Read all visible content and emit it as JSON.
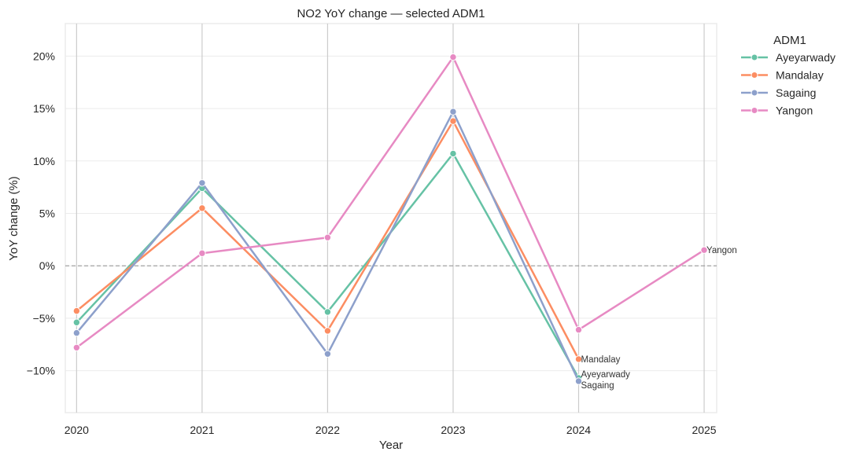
{
  "chart_data": {
    "type": "line",
    "title": "NO2 YoY change — selected ADM1",
    "xlabel": "Year",
    "ylabel": "YoY change (%)",
    "x": [
      2020,
      2021,
      2022,
      2023,
      2024,
      2025
    ],
    "xlim": [
      2019.91,
      2025.1
    ],
    "ylim": [
      -14.0,
      23.1
    ],
    "yticks": [
      -10,
      -5,
      0,
      5,
      10,
      15,
      20
    ],
    "ytick_labels": [
      "−10%",
      "−5%",
      "0%",
      "5%",
      "10%",
      "15%",
      "20%"
    ],
    "xtick_labels": [
      "2020",
      "2021",
      "2022",
      "2023",
      "2024",
      "2025"
    ],
    "grid": true,
    "reference_line": {
      "y": 0,
      "style": "dashed"
    },
    "legend": {
      "title": "ADM1",
      "placement": "outside-top-right"
    },
    "series": [
      {
        "name": "Ayeyarwady",
        "color": "#66c2a5",
        "points": [
          {
            "x": 2020,
            "y": -5.4
          },
          {
            "x": 2021,
            "y": 7.4
          },
          {
            "x": 2022,
            "y": -4.4
          },
          {
            "x": 2023,
            "y": 10.7
          },
          {
            "x": 2024,
            "y": -10.7
          }
        ],
        "end_label": "Ayeyarwady"
      },
      {
        "name": "Mandalay",
        "color": "#fc8d62",
        "points": [
          {
            "x": 2020,
            "y": -4.3
          },
          {
            "x": 2021,
            "y": 5.5
          },
          {
            "x": 2022,
            "y": -6.2
          },
          {
            "x": 2023,
            "y": 13.8
          },
          {
            "x": 2024,
            "y": -8.9
          }
        ],
        "end_label": "Mandalay"
      },
      {
        "name": "Sagaing",
        "color": "#8da0cb",
        "points": [
          {
            "x": 2020,
            "y": -6.4
          },
          {
            "x": 2021,
            "y": 7.9
          },
          {
            "x": 2022,
            "y": -8.4
          },
          {
            "x": 2023,
            "y": 14.7
          },
          {
            "x": 2024,
            "y": -11.0
          }
        ],
        "end_label": "Sagaing"
      },
      {
        "name": "Yangon",
        "color": "#e78ac3",
        "points": [
          {
            "x": 2020,
            "y": -7.8
          },
          {
            "x": 2021,
            "y": 1.2
          },
          {
            "x": 2022,
            "y": 2.7
          },
          {
            "x": 2023,
            "y": 19.9
          },
          {
            "x": 2024,
            "y": -6.1
          },
          {
            "x": 2025,
            "y": 1.5
          }
        ],
        "end_label": "Yangon"
      }
    ]
  }
}
